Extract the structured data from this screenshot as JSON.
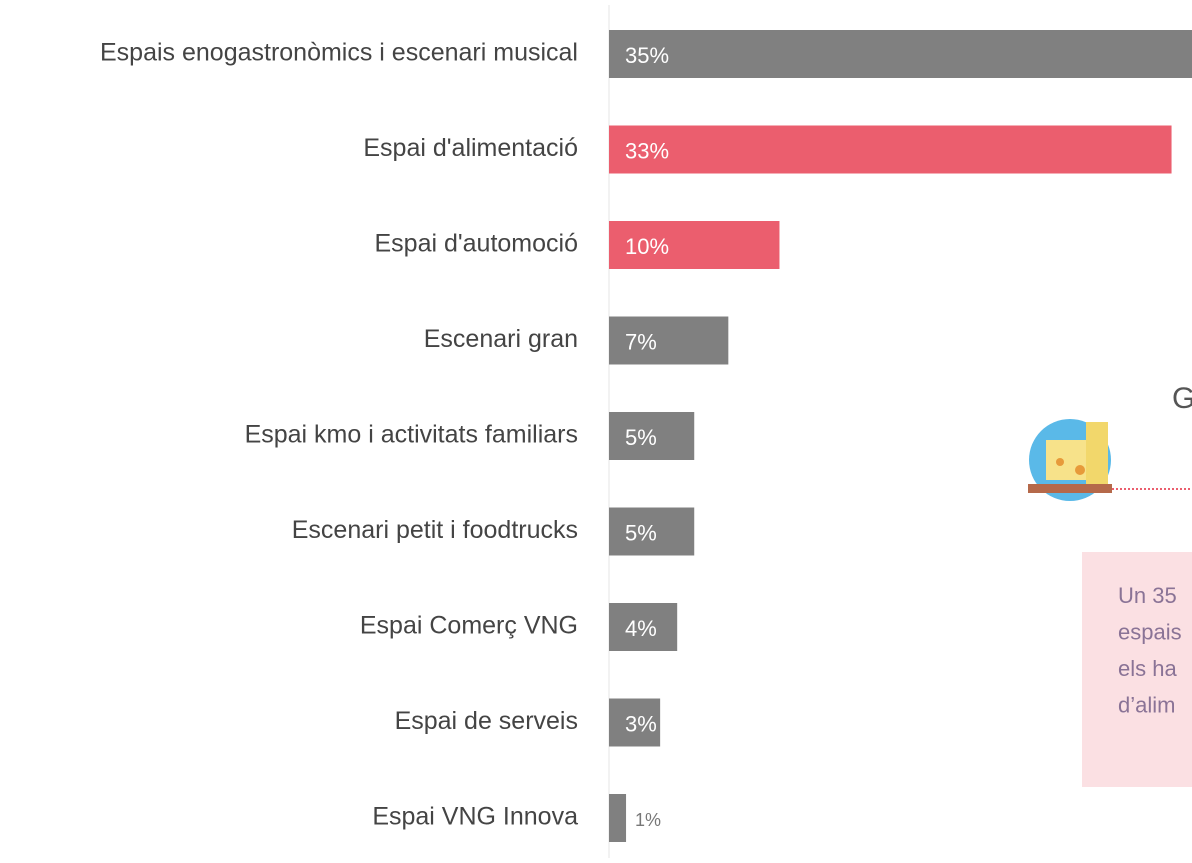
{
  "chart_data": {
    "type": "hbar",
    "categories": [
      "Espais enogastronòmics i escenari musical",
      "Espai d'alimentació",
      "Espai d'automoció",
      "Escenari gran",
      "Espai kmo i activitats familiars",
      "Escenari petit i foodtrucks",
      "Espai Comerç VNG",
      "Espai de serveis",
      "Espai VNG Innova"
    ],
    "values": [
      35,
      33,
      10,
      7,
      5,
      5,
      4,
      3,
      1
    ],
    "value_labels": [
      "35%",
      "33%",
      "10%",
      "7%",
      "5%",
      "5%",
      "4%",
      "3%",
      "1%"
    ],
    "colors": [
      "#808080",
      "#eb5e6e",
      "#eb5e6e",
      "#808080",
      "#808080",
      "#808080",
      "#808080",
      "#808080",
      "#808080"
    ],
    "xlim": [
      0,
      34.2
    ],
    "heading": "G",
    "note_lines": [
      "Un 35",
      "espais",
      "els ha",
      "d’alim"
    ]
  }
}
